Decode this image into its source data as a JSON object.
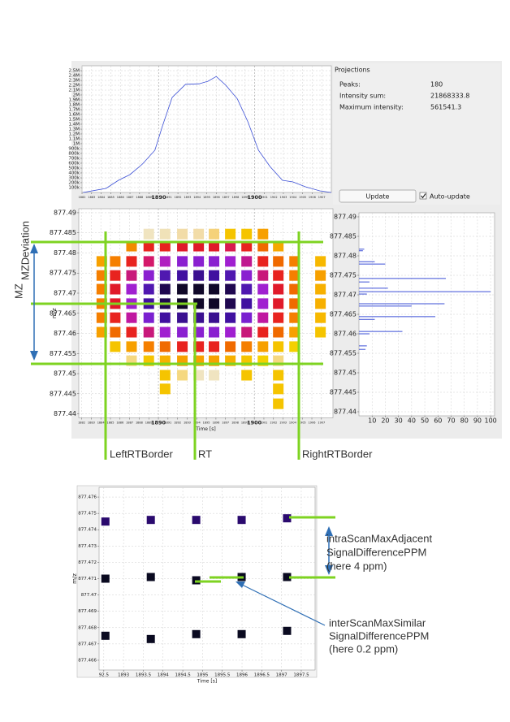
{
  "chart_data": [
    {
      "type": "line",
      "x": [
        1882.1,
        1884.5,
        1885.8,
        1887.0,
        1888.3,
        1889.6,
        1890.4,
        1891.4,
        1892.8,
        1894.2,
        1895.1,
        1896.0,
        1897.0,
        1898.2,
        1899.3,
        1900.4,
        1901.6,
        1902.9,
        1904.0,
        1905.3,
        1906.8,
        1908.0
      ],
      "values": [
        0,
        83000,
        250000,
        367000,
        583000,
        867000,
        1370000,
        1950000,
        2220000,
        2230000,
        2280000,
        2380000,
        2200000,
        1920000,
        1450000,
        867000,
        533000,
        250000,
        217000,
        117000,
        33000,
        0
      ],
      "color": "#3b4fd6",
      "xlim": [
        1882,
        1908
      ],
      "ylim": [
        0,
        2600000
      ],
      "xticks": [
        1882,
        1883,
        1884,
        1885,
        1886,
        1887,
        1888,
        1889,
        1890,
        1891,
        1892,
        1893,
        1894,
        1895,
        1896,
        1897,
        1898,
        1899,
        1900,
        1901,
        1902,
        1903,
        1904,
        1905,
        1906,
        1907
      ],
      "yticks": [
        {
          "value": 100000,
          "label": "100k"
        },
        {
          "value": 200000,
          "label": "200k"
        },
        {
          "value": 300000,
          "label": "300k"
        },
        {
          "value": 400000,
          "label": "400k"
        },
        {
          "value": 500000,
          "label": "500k"
        },
        {
          "value": 600000,
          "label": "600k"
        },
        {
          "value": 700000,
          "label": "700k"
        },
        {
          "value": 800000,
          "label": "800k"
        },
        {
          "value": 900000,
          "label": "900k"
        },
        {
          "value": 1000000,
          "label": "1M"
        },
        {
          "value": 1100000,
          "label": "1.1M"
        },
        {
          "value": 1200000,
          "label": "1.2M"
        },
        {
          "value": 1300000,
          "label": "1.3M"
        },
        {
          "value": 1400000,
          "label": "1.4M"
        },
        {
          "value": 1500000,
          "label": "1.5M"
        },
        {
          "value": 1600000,
          "label": "1.6M"
        },
        {
          "value": 1700000,
          "label": "1.7M"
        },
        {
          "value": 1800000,
          "label": "1.8M"
        },
        {
          "value": 1900000,
          "label": "1.9M"
        },
        {
          "value": 2000000,
          "label": "2M"
        },
        {
          "value": 2100000,
          "label": "2.1M"
        },
        {
          "value": 2200000,
          "label": "2.2M"
        },
        {
          "value": 2300000,
          "label": "2.3M"
        },
        {
          "value": 2400000,
          "label": "2.4M"
        },
        {
          "value": 2500000,
          "label": "2.5M"
        }
      ],
      "grid": true
    },
    {
      "type": "heatmap",
      "xlabel": "Time [s]",
      "ylabel": "m/z",
      "x": [
        1884.1,
        1885.5,
        1887.2,
        1889.0,
        1890.7,
        1892.5,
        1894.2,
        1895.8,
        1897.5,
        1899.2,
        1900.9,
        1902.5,
        1904.2,
        1906.9
      ],
      "y": [
        877.4847,
        877.4817,
        877.4779,
        877.4744,
        877.471,
        877.4674,
        877.4639,
        877.4603,
        877.4567,
        877.4532,
        877.4496,
        877.4462,
        877.4425
      ],
      "colors": [
        [
          null,
          null,
          null,
          "#f0e4c0",
          "#f0e2b8",
          "#f2dca8",
          "#f2dca8",
          "#f5d27a",
          "#f5c400",
          "#f5c400",
          "#f7a000",
          null,
          null,
          null
        ],
        [
          null,
          null,
          "#f28a00",
          "#e8231f",
          "#e8231f",
          "#e01a2a",
          "#e01a2a",
          "#e01a2a",
          "#d81a50",
          "#e8231f",
          "#f06a00",
          "#f5a800",
          null,
          null
        ],
        [
          "#f7a000",
          "#f57f00",
          "#e8231f",
          "#d4186a",
          "#b020c0",
          "#8a20d0",
          "#8a20d0",
          "#8a20d0",
          "#a020d0",
          "#c01890",
          "#e8231f",
          "#f06a00",
          "#f57f00",
          "#f7b800"
        ],
        [
          "#f57f00",
          "#e8231f",
          "#c8187a",
          "#8a20d0",
          "#5018b0",
          "#4010a0",
          "#3a1090",
          "#4010a0",
          "#5018b0",
          "#8a20d0",
          "#c8187a",
          "#e8231f",
          "#f57f00",
          "#f7a000"
        ],
        [
          "#f57f00",
          "#e01a2a",
          "#a020d0",
          "#5018b0",
          "#200850",
          "#100828",
          "#100828",
          "#100828",
          "#200850",
          "#5018b0",
          "#a020d0",
          "#e01a2a",
          "#f06a00",
          "#f7b000"
        ],
        [
          "#f57f00",
          "#e01a2a",
          "#a020d0",
          "#4010a0",
          "#200850",
          "#100828",
          "#100828",
          "#100828",
          "#200850",
          "#4010a0",
          "#a020d0",
          "#e01a2a",
          "#f06a00",
          "#f7b000"
        ],
        [
          "#f57f00",
          "#e8231f",
          "#c018a0",
          "#7a20d0",
          "#4010a0",
          "#3a1090",
          "#3a1090",
          "#3a1090",
          "#4010a0",
          "#7a20d0",
          "#c018a0",
          "#e8231f",
          "#f57f00",
          "#f7b800"
        ],
        [
          "#f7a000",
          "#f06a00",
          "#e8231f",
          "#c8187a",
          "#a020d0",
          "#8a20d0",
          "#8a20d0",
          "#8a20d0",
          "#a020d0",
          "#c8187a",
          "#e8231f",
          "#f06a00",
          "#f7a000",
          "#f5c400"
        ],
        [
          null,
          "#f5c400",
          "#f7a000",
          "#f57f00",
          "#f06a00",
          "#e8231f",
          "#e8231f",
          "#e8231f",
          "#f06a00",
          "#f57f00",
          "#f7a000",
          "#f5c400",
          "#f5d000",
          null
        ],
        [
          null,
          null,
          "#f5d880",
          "#f5c400",
          "#f7b000",
          "#f7a000",
          "#f7a000",
          "#f7a000",
          "#f7b000",
          "#f5c400",
          "#f5d000",
          "#f5d880",
          null,
          null
        ],
        [
          null,
          null,
          null,
          null,
          "#f5c400",
          "#f5d880",
          "#f0e4c0",
          "#f0e4c0",
          null,
          "#f5c400",
          null,
          "#f5c400",
          null,
          null
        ],
        [
          null,
          null,
          null,
          null,
          "#f5c400",
          null,
          null,
          null,
          null,
          null,
          null,
          "#f5c400",
          null,
          null
        ],
        [
          null,
          null,
          null,
          null,
          null,
          null,
          null,
          null,
          null,
          null,
          null,
          "#f5c400",
          null,
          null
        ]
      ],
      "xlim": [
        1881.7,
        1908.2
      ],
      "ylim": [
        877.439,
        877.491
      ],
      "xticks": [
        1882,
        1883,
        1884,
        1885,
        1886,
        1887,
        1888,
        1889,
        1890,
        1891,
        1892,
        1893,
        1894,
        1895,
        1896,
        1897,
        1898,
        1899,
        1900,
        1901,
        1902,
        1903,
        1904,
        1905,
        1906,
        1907
      ],
      "yticks": [
        877.44,
        877.445,
        877.45,
        877.455,
        877.46,
        877.465,
        877.47,
        877.475,
        877.48,
        877.485,
        877.49
      ],
      "grid": true
    },
    {
      "type": "barh",
      "y": [
        877.4817,
        877.4813,
        877.4785,
        877.4779,
        877.4742,
        877.4733,
        877.4717,
        877.4708,
        877.4702,
        877.4677,
        877.4671,
        877.4644,
        877.4637,
        877.4606,
        877.46,
        877.4569,
        877.456
      ],
      "values": [
        4,
        3,
        12,
        20,
        66,
        8,
        22,
        100,
        6,
        65,
        40,
        58,
        12,
        33,
        8,
        6,
        5
      ],
      "color": "#3b4fd6",
      "xlim": [
        0,
        103
      ],
      "ylim": [
        877.439,
        877.491
      ],
      "xticks": [
        10,
        20,
        30,
        40,
        50,
        60,
        70,
        80,
        90,
        100
      ],
      "yticks": [
        877.44,
        877.445,
        877.45,
        877.455,
        877.46,
        877.465,
        877.47,
        877.475,
        877.48,
        877.485,
        877.49
      ],
      "grid": true
    },
    {
      "type": "scatter",
      "xlabel": "Time [s]",
      "ylabel": "m/z",
      "series": [
        {
          "color": "#2a0a6e",
          "x": [
            1892.54,
            1893.69,
            1894.84,
            1895.99,
            1897.14
          ],
          "values": [
            877.4745,
            877.4746,
            877.4746,
            877.4746,
            877.4747
          ]
        },
        {
          "color": "#0a0a20",
          "x": [
            1892.54,
            1893.69,
            1894.84,
            1895.99,
            1897.14
          ],
          "values": [
            877.471,
            877.4711,
            877.4709,
            877.4711,
            877.4711
          ]
        },
        {
          "color": "#0a0a20",
          "x": [
            1892.54,
            1893.69,
            1894.84,
            1895.99,
            1897.14
          ],
          "values": [
            877.4675,
            877.4673,
            877.4676,
            877.4676,
            877.4678
          ]
        }
      ],
      "xlim": [
        1892.38,
        1897.85
      ],
      "ylim": [
        877.4654,
        877.4766
      ],
      "xticks": [
        {
          "value": 1892.5,
          "label": "92.5"
        },
        1893,
        1893.5,
        1894,
        1894.5,
        1895,
        1895.5,
        1896,
        1896.5,
        1897,
        1897.5
      ],
      "yticks": [
        877.466,
        877.467,
        877.468,
        877.469,
        877.47,
        877.471,
        877.472,
        877.473,
        877.474,
        877.475,
        877.476
      ],
      "grid": true
    }
  ],
  "projections_panel": {
    "title": "Projections",
    "peaks_label": "Peaks:",
    "peaks": 180,
    "intensity_sum_label": "Intensity sum:",
    "intensity_sum": 21868333.8,
    "max_intensity_label": "Maximum intensity:",
    "max_intensity": 561541.3,
    "update_button": "Update",
    "auto_update": "Auto-update"
  },
  "annotations": {
    "mz": "MZ",
    "mz_deviation": "MZDeviation",
    "left_rt_border": "LeftRTBorder",
    "rt": "RT",
    "right_rt_border": "RightRTBorder",
    "intra_line1": "intraScanMaxAdjacent",
    "intra_line2": "SignalDifferencePPM",
    "intra_line3": "(here 4 ppm)",
    "inter_line1": "interScanMaxSimilar",
    "inter_line2": "SignalDifferencePPM",
    "inter_line3": "(here 0.2 ppm)"
  }
}
